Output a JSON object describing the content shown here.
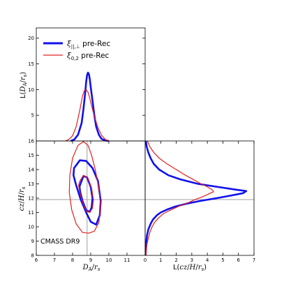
{
  "colors": {
    "blue": "#1010ee",
    "red": "#e02020",
    "refline": "#a0a0a0"
  },
  "legend": [
    {
      "label": "ξ||,⊥ pre-Rec",
      "color": "#1010ee"
    },
    {
      "label": "ξ0,2 pre-Rec",
      "color": "#e02020"
    }
  ],
  "annotation": "CMASS DR9",
  "chart_data": [
    {
      "panel": "top",
      "type": "line",
      "xlabel": "",
      "ylabel": "L(DA/rs)",
      "xlim": [
        6,
        12
      ],
      "ylim": [
        0,
        22
      ],
      "yticks": [
        5,
        10,
        15,
        20
      ],
      "series": [
        {
          "name": "ξ||,⊥ pre-Rec",
          "color": "#1010ee",
          "x": [
            7.9,
            8.1,
            8.3,
            8.5,
            8.6,
            8.7,
            8.75,
            8.8,
            8.85,
            8.9,
            8.95,
            9.0,
            9.1,
            9.2,
            9.3,
            9.45,
            9.6,
            9.8,
            10.0
          ],
          "y": [
            0,
            0.3,
            1.2,
            3.5,
            6.2,
            9.5,
            11.5,
            12.8,
            13.3,
            13.0,
            12.0,
            10.5,
            7.8,
            5.0,
            2.8,
            1.2,
            0.4,
            0.1,
            0
          ]
        },
        {
          "name": "ξ0,2 pre-Rec",
          "color": "#e02020",
          "x": [
            7.6,
            7.8,
            8.0,
            8.2,
            8.4,
            8.55,
            8.65,
            8.75,
            8.85,
            8.95,
            9.05,
            9.2,
            9.4,
            9.6,
            9.8,
            10.0
          ],
          "y": [
            0,
            0.3,
            1.0,
            2.8,
            6.0,
            8.8,
            9.8,
            10.0,
            9.5,
            8.3,
            6.8,
            4.8,
            2.6,
            1.1,
            0.3,
            0
          ]
        }
      ]
    },
    {
      "panel": "main",
      "type": "contour",
      "xlabel": "DA/rs",
      "ylabel": "cz/H/rs",
      "xlim": [
        6,
        12
      ],
      "ylim": [
        8,
        16
      ],
      "xticks": [
        6,
        7,
        8,
        9,
        10,
        11
      ],
      "yticks": [
        8,
        9,
        10,
        11,
        12,
        13,
        14,
        15
      ],
      "ref_x": 8.8,
      "ref_y": 11.9,
      "series": [
        {
          "name": "ξ||,⊥ pre-Rec 1σ",
          "color": "#1010ee",
          "x": [
            8.45,
            8.6,
            8.8,
            9.0,
            9.1,
            9.05,
            8.95,
            8.75,
            8.55,
            8.42,
            8.38,
            8.45
          ],
          "y": [
            13.05,
            13.55,
            13.45,
            12.8,
            12.0,
            11.35,
            11.05,
            11.15,
            11.8,
            12.45,
            12.8,
            13.05
          ]
        },
        {
          "name": "ξ||,⊥ pre-Rec 2σ",
          "color": "#1010ee",
          "x": [
            8.2,
            8.4,
            8.75,
            9.1,
            9.4,
            9.55,
            9.5,
            9.3,
            9.0,
            8.75,
            8.45,
            8.2,
            8.05,
            8.08,
            8.2
          ],
          "y": [
            14.3,
            14.65,
            14.6,
            14.1,
            13.2,
            11.8,
            10.8,
            10.15,
            10.35,
            11.0,
            11.9,
            12.9,
            13.6,
            14.1,
            14.3
          ]
        },
        {
          "name": "ξ0,2 pre-Rec 1σ",
          "color": "#e02020",
          "x": [
            8.4,
            8.6,
            8.85,
            9.05,
            9.15,
            9.1,
            8.95,
            8.75,
            8.55,
            8.4,
            8.33,
            8.4
          ],
          "y": [
            13.2,
            13.6,
            13.4,
            12.7,
            11.9,
            11.3,
            11.0,
            11.1,
            11.7,
            12.4,
            12.9,
            13.2
          ]
        },
        {
          "name": "ξ0,2 pre-Rec 2σ",
          "color": "#e02020",
          "x": [
            8.3,
            8.6,
            8.85,
            9.05,
            9.25,
            9.45,
            9.55,
            9.45,
            9.2,
            8.9,
            8.55,
            8.2,
            7.95,
            7.82,
            7.85,
            8.0,
            8.3
          ],
          "y": [
            15.7,
            15.95,
            15.7,
            15.0,
            14.0,
            12.7,
            11.4,
            10.3,
            9.7,
            9.55,
            9.6,
            10.2,
            11.2,
            12.4,
            13.6,
            14.8,
            15.7
          ]
        }
      ]
    },
    {
      "panel": "right",
      "type": "line",
      "xlabel": "L(cz/H/rs)",
      "ylabel": "",
      "xlim": [
        0,
        7
      ],
      "ylim": [
        8,
        16
      ],
      "xticks": [
        0,
        1,
        2,
        3,
        4,
        5,
        6,
        7
      ],
      "series": [
        {
          "name": "ξ||,⊥ pre-Rec",
          "color": "#1010ee",
          "y": [
            16.0,
            15.6,
            15.2,
            14.8,
            14.4,
            14.0,
            13.6,
            13.3,
            13.0,
            12.8,
            12.6,
            12.5,
            12.35,
            12.2,
            12.0,
            11.8,
            11.6,
            11.4,
            11.2,
            11.0,
            10.8,
            10.5,
            10.2,
            9.8,
            9.4,
            9.0,
            8.5,
            8.0
          ],
          "x": [
            0.05,
            0.1,
            0.2,
            0.35,
            0.55,
            0.9,
            1.5,
            2.3,
            3.4,
            4.6,
            5.8,
            6.5,
            6.3,
            5.6,
            4.6,
            3.5,
            2.6,
            1.9,
            1.4,
            1.0,
            0.75,
            0.5,
            0.35,
            0.2,
            0.12,
            0.08,
            0.05,
            0.03
          ]
        },
        {
          "name": "ξ0,2 pre-Rec",
          "color": "#e02020",
          "y": [
            16.0,
            15.6,
            15.2,
            14.8,
            14.4,
            14.0,
            13.6,
            13.3,
            13.0,
            12.8,
            12.6,
            12.45,
            12.3,
            12.1,
            11.9,
            11.7,
            11.5,
            11.3,
            11.1,
            10.9,
            10.6,
            10.3,
            10.0,
            9.6,
            9.2,
            8.8,
            8.4,
            8.0
          ],
          "x": [
            0.15,
            0.3,
            0.55,
            0.9,
            1.4,
            2.0,
            2.6,
            3.1,
            3.6,
            4.0,
            4.3,
            4.4,
            4.1,
            3.7,
            3.2,
            2.8,
            2.3,
            1.9,
            1.5,
            1.15,
            0.85,
            0.6,
            0.45,
            0.3,
            0.2,
            0.12,
            0.08,
            0.05
          ]
        }
      ]
    }
  ]
}
